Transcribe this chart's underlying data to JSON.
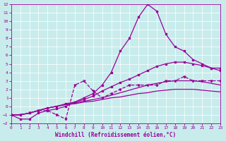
{
  "title": "",
  "xlabel": "Windchill (Refroidissement éolien,°C)",
  "ylabel": "",
  "bg_color": "#c8ecec",
  "line_color": "#990099",
  "grid_color": "#ffffff",
  "xlim": [
    0,
    23
  ],
  "ylim": [
    -2,
    12
  ],
  "xticks": [
    0,
    1,
    2,
    3,
    4,
    5,
    6,
    7,
    8,
    9,
    10,
    11,
    12,
    13,
    14,
    15,
    16,
    17,
    18,
    19,
    20,
    21,
    22,
    23
  ],
  "yticks": [
    -2,
    -1,
    0,
    1,
    2,
    3,
    4,
    5,
    6,
    7,
    8,
    9,
    10,
    11,
    12
  ],
  "curve_main_x": [
    0,
    1,
    2,
    3,
    4,
    5,
    6,
    7,
    8,
    9,
    10,
    11,
    12,
    13,
    14,
    15,
    16,
    17,
    18,
    19,
    20,
    21,
    22,
    23
  ],
  "curve_main_y": [
    -1,
    -1.5,
    -1.5,
    -0.8,
    -0.5,
    -0.3,
    0.0,
    0.5,
    1.0,
    1.5,
    2.5,
    4.0,
    6.5,
    8.0,
    10.5,
    12.0,
    11.2,
    8.5,
    7.0,
    6.5,
    5.5,
    5.0,
    4.5,
    4.5
  ],
  "curve_dashed_x": [
    0,
    1,
    2,
    3,
    4,
    5,
    6,
    7,
    8,
    9,
    10,
    11,
    12,
    13,
    14,
    15,
    16,
    17,
    18,
    19,
    20,
    21,
    22,
    23
  ],
  "curve_dashed_y": [
    -1,
    -1,
    -0.8,
    -0.5,
    -0.5,
    -1.0,
    -1.5,
    2.5,
    3.0,
    1.8,
    1.0,
    1.5,
    2.0,
    2.5,
    2.5,
    2.5,
    2.5,
    3.0,
    3.0,
    3.5,
    3.0,
    3.0,
    3.0,
    3.0
  ],
  "curve_smooth_high_x": [
    0,
    1,
    2,
    3,
    4,
    5,
    6,
    7,
    8,
    9,
    10,
    11,
    12,
    13,
    14,
    15,
    16,
    17,
    18,
    19,
    20,
    21,
    22,
    23
  ],
  "curve_smooth_high_y": [
    -1,
    -1,
    -0.8,
    -0.5,
    -0.2,
    0.0,
    0.3,
    0.5,
    0.8,
    1.2,
    1.8,
    2.3,
    2.8,
    3.2,
    3.7,
    4.2,
    4.7,
    5.0,
    5.2,
    5.2,
    5.0,
    4.8,
    4.5,
    4.2
  ],
  "curve_smooth_mid_x": [
    0,
    1,
    2,
    3,
    4,
    5,
    6,
    7,
    8,
    9,
    10,
    11,
    12,
    13,
    14,
    15,
    16,
    17,
    18,
    19,
    20,
    21,
    22,
    23
  ],
  "curve_smooth_mid_y": [
    -1,
    -1,
    -0.8,
    -0.5,
    -0.2,
    0.0,
    0.2,
    0.4,
    0.6,
    0.8,
    1.0,
    1.3,
    1.6,
    1.9,
    2.2,
    2.5,
    2.7,
    2.9,
    3.0,
    3.0,
    3.0,
    2.9,
    2.7,
    2.5
  ],
  "curve_smooth_low_x": [
    0,
    1,
    2,
    3,
    4,
    5,
    6,
    7,
    8,
    9,
    10,
    11,
    12,
    13,
    14,
    15,
    16,
    17,
    18,
    19,
    20,
    21,
    22,
    23
  ],
  "curve_smooth_low_y": [
    -1,
    -1,
    -0.8,
    -0.5,
    -0.2,
    0.0,
    0.2,
    0.3,
    0.5,
    0.6,
    0.8,
    1.0,
    1.1,
    1.3,
    1.5,
    1.6,
    1.8,
    1.9,
    2.0,
    2.0,
    2.0,
    1.9,
    1.8,
    1.7
  ]
}
